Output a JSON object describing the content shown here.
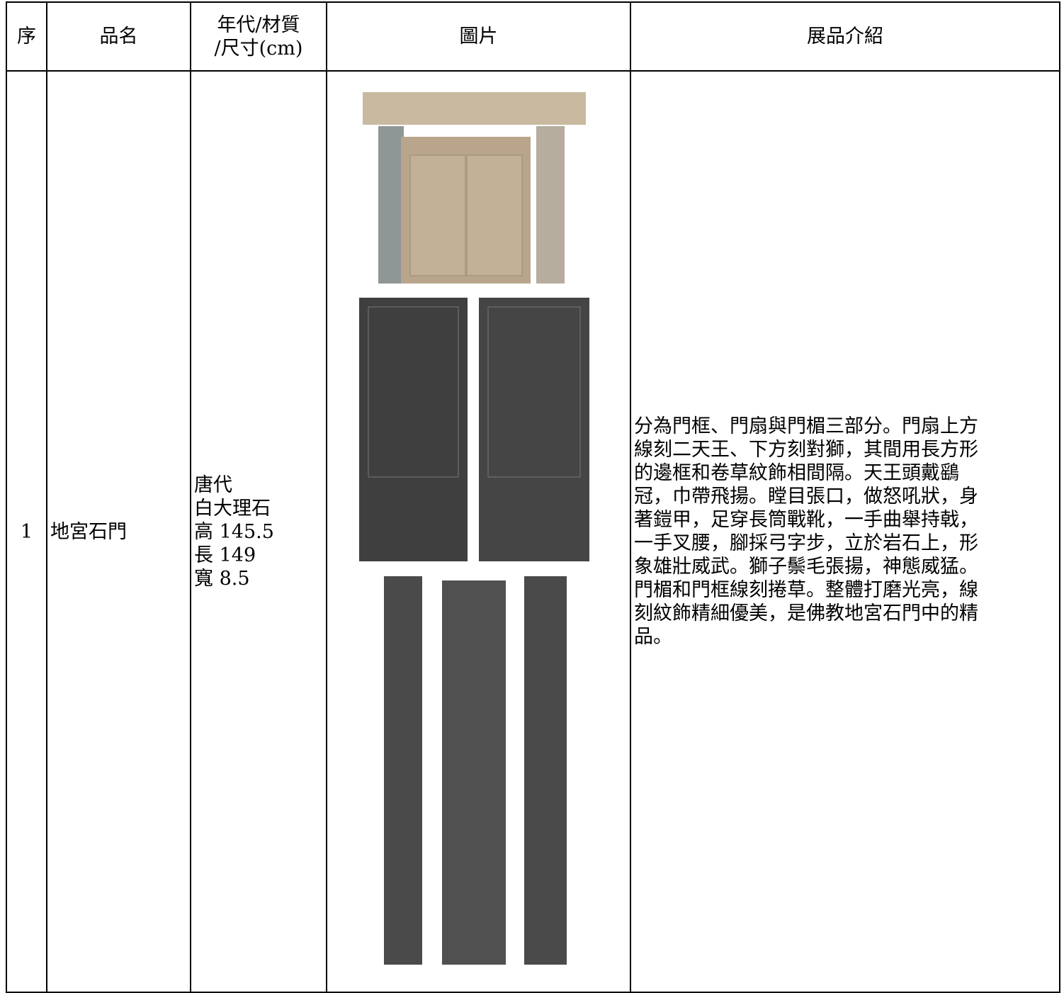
{
  "table": {
    "header": [
      "序",
      "品名",
      [
        "年代/材質",
        "/尺寸(cm)"
      ],
      "圖片",
      "展品介紹"
    ],
    "rows": [
      [
        "1",
        "地宮石門",
        [
          "唐代",
          "白大理石",
          "高 145.5",
          "長 149",
          "寬 8.5"
        ],
        [
          "分為門框、門扇與門楣三部分。門扇上方",
          "線刻二天王、下方刻對獅，其間用長方形",
          "的邊框和卷草紋飾相間隔。天王頭戴鷂",
          "冠，巾帶飛揚。瞠目張口，做怒吼狀，身",
          "著鎧甲，足穿長筒戰靴，一手曲舉持戟，",
          "一手叉腰，腳採弓字步，立於岩石上，形",
          "象雄壯威武。獅子鬃毛張揚，神態威猛。",
          "門楣和門框線刻捲草。整體打磨光亮，線",
          "刻紋飾精細優美，是佛教地宮石門中的精",
          "品。"
        ]
      ]
    ]
  }
}
